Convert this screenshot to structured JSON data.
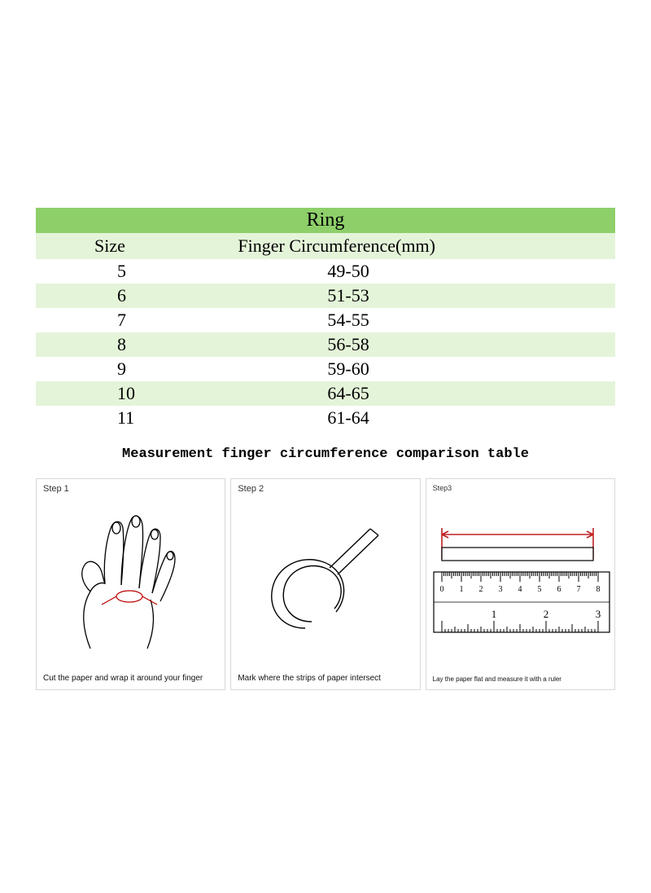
{
  "table": {
    "title": "Ring",
    "columns": [
      "Size",
      "Finger Circumference(mm)"
    ],
    "rows": [
      [
        "5",
        "49-50"
      ],
      [
        "6",
        "51-53"
      ],
      [
        "7",
        "54-55"
      ],
      [
        "8",
        "56-58"
      ],
      [
        "9",
        "59-60"
      ],
      [
        "10",
        "64-65"
      ],
      [
        "11",
        "61-64"
      ]
    ],
    "header_bg": "#8ecf6a",
    "subheader_bg": "#e4f4d9",
    "alt_row_bg": "#e4f4d9",
    "row_bg": "#ffffff",
    "text_color": "#000000",
    "title_fontsize": 24,
    "header_fontsize": 22,
    "cell_fontsize": 22
  },
  "subtitle": "Measurement finger circumference comparison table",
  "steps": [
    {
      "label": "Step 1",
      "caption": "Cut the paper and wrap it around your finger"
    },
    {
      "label": "Step 2",
      "caption": "Mark where the strips of paper intersect"
    },
    {
      "label": "Step3",
      "caption": "Lay the paper flat and measure it with a ruler"
    }
  ],
  "colors": {
    "panel_border": "#d8d8d8",
    "ink": "#000000",
    "ruler_red": "#c02020",
    "background": "#ffffff"
  },
  "ruler": {
    "top_numbers": [
      "0",
      "1",
      "2",
      "3",
      "4",
      "5",
      "6",
      "7",
      "8"
    ],
    "bottom_numbers": [
      "1",
      "2",
      "3"
    ]
  }
}
